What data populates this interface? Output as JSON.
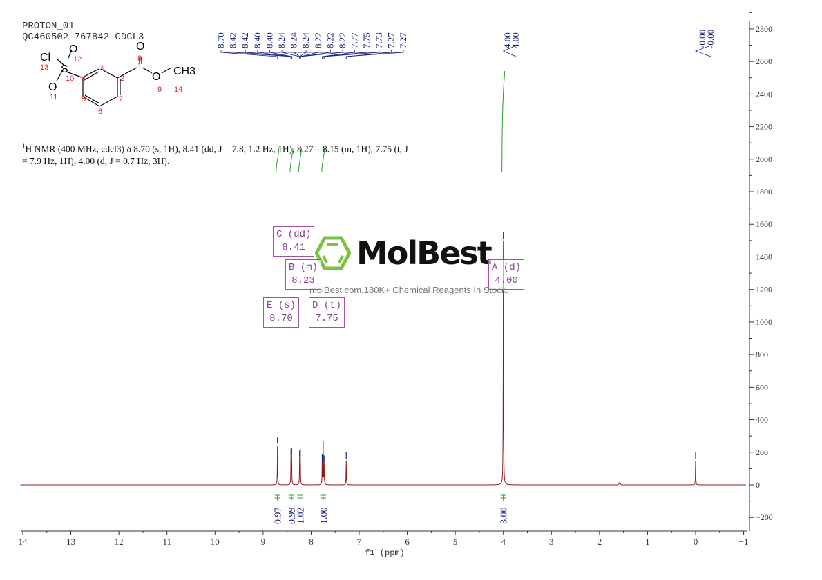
{
  "header": {
    "line1": "PROTON_01",
    "line2": "QC460502-767842-CDCL3"
  },
  "report": {
    "prefix": "1",
    "text": "H NMR (400 MHz, cdcl3) δ 8.70 (s, 1H), 8.41 (dd, J = 7.8, 1.2 Hz, 1H), 8.27 – 8.15 (m, 1H), 7.75 (t, J = 7.9 Hz, 1H), 4.00 (d, J = 0.7 Hz, 3H)."
  },
  "structure": {
    "atoms": [
      "Cl",
      "S",
      "O",
      "O",
      "O",
      "O",
      "CH3"
    ],
    "numbers": [
      "1",
      "2",
      "3",
      "4",
      "5",
      "6",
      "7",
      "8",
      "9",
      "10",
      "11",
      "12",
      "13",
      "14"
    ]
  },
  "boxes": [
    {
      "id": "C",
      "mult": "C (dd)",
      "shift": "8.41"
    },
    {
      "id": "B",
      "mult": "B (m)",
      "shift": "8.23"
    },
    {
      "id": "E",
      "mult": "E (s)",
      "shift": "8.70"
    },
    {
      "id": "D",
      "mult": "D (t)",
      "shift": "7.75"
    },
    {
      "id": "A",
      "mult": "A (d)",
      "shift": "4.00"
    }
  ],
  "watermark": {
    "brand": "MolBest",
    "tagline": "molBest.com,180K+ Chemical Reagents In Stock."
  },
  "colors": {
    "spectrum": "#8b1a1a",
    "labels": "#1a237e",
    "integral": "#2e9b2e",
    "box": "#a050a8",
    "logo": "#7cc242"
  },
  "chart_data": {
    "type": "line",
    "xlabel": "f1 (ppm)",
    "ylabel": "",
    "xlim": [
      14,
      -1
    ],
    "ylim": [
      -250,
      2850
    ],
    "xticks": [
      "14",
      "13",
      "12",
      "11",
      "10",
      "9",
      "8",
      "7",
      "6",
      "5",
      "4",
      "3",
      "2",
      "1",
      "0",
      "−1"
    ],
    "xtick_values": [
      14,
      13,
      12,
      11,
      10,
      9,
      8,
      7,
      6,
      5,
      4,
      3,
      2,
      1,
      0,
      -1
    ],
    "yticks": [
      "2800",
      "2600",
      "2400",
      "2200",
      "2000",
      "1800",
      "1600",
      "1400",
      "1200",
      "1000",
      "800",
      "600",
      "400",
      "200",
      "0",
      "−200"
    ],
    "ytick_values": [
      2800,
      2600,
      2400,
      2200,
      2000,
      1800,
      1600,
      1400,
      1200,
      1000,
      800,
      600,
      400,
      200,
      0,
      -200
    ],
    "peaks": [
      {
        "ppm": 8.7,
        "height": 245
      },
      {
        "ppm": 8.42,
        "height": 170
      },
      {
        "ppm": 8.405,
        "height": 175
      },
      {
        "ppm": 8.24,
        "height": 160
      },
      {
        "ppm": 8.225,
        "height": 168
      },
      {
        "ppm": 7.77,
        "height": 140
      },
      {
        "ppm": 7.75,
        "height": 215
      },
      {
        "ppm": 7.73,
        "height": 130
      },
      {
        "ppm": 7.27,
        "height": 150
      },
      {
        "ppm": 4.0,
        "height": 1500
      },
      {
        "ppm": 1.58,
        "height": 8
      },
      {
        "ppm": 0.0,
        "height": 150
      }
    ],
    "peak_labels_group1": [
      "8.70",
      "8.42",
      "8.42",
      "8.40",
      "8.40",
      "8.24",
      "8.24",
      "8.24",
      "8.22",
      "8.22",
      "8.22",
      "7.77",
      "7.75",
      "7.73",
      "7.27",
      "7.27"
    ],
    "peak_label_ppm_group1": [
      8.7,
      8.42,
      8.42,
      8.4,
      8.4,
      8.24,
      8.24,
      8.24,
      8.22,
      8.22,
      8.22,
      7.77,
      7.75,
      7.73,
      7.27,
      7.27
    ],
    "peak_labels_group2": [
      "4.00",
      "4.00"
    ],
    "peak_labels_group3": [
      "-0.00",
      "-0.00"
    ],
    "integrals": [
      {
        "ppm": 8.7,
        "value": "0.97"
      },
      {
        "ppm": 8.41,
        "value": "0.99"
      },
      {
        "ppm": 8.23,
        "value": "1.02"
      },
      {
        "ppm": 7.75,
        "value": "1.00"
      },
      {
        "ppm": 4.0,
        "value": "3.00"
      }
    ]
  }
}
